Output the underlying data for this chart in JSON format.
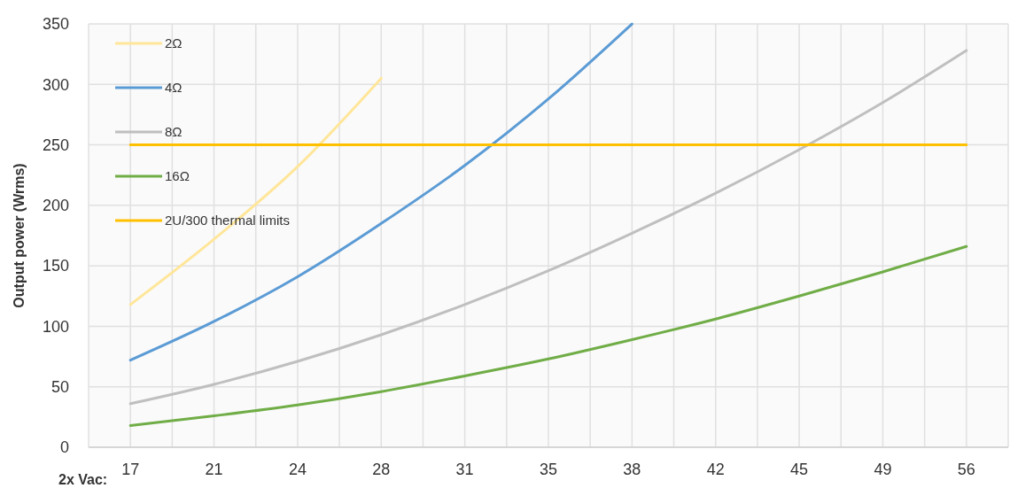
{
  "chart_data": {
    "type": "line",
    "xlabel": "2x Vac:",
    "ylabel": "Output power (Wrms)",
    "categories": [
      "17",
      "21",
      "24",
      "28",
      "31",
      "35",
      "38",
      "42",
      "45",
      "49",
      "56"
    ],
    "series": [
      {
        "name": "2Ω",
        "color": "#ffe699",
        "values": [
          118,
          172,
          232,
          305,
          null,
          null,
          null,
          null,
          null,
          null,
          null
        ]
      },
      {
        "name": "4Ω",
        "color": "#5b9bd5",
        "values": [
          72,
          104,
          141,
          185,
          233,
          288,
          350,
          null,
          null,
          null,
          null
        ]
      },
      {
        "name": "8Ω",
        "color": "#bfbfbf",
        "values": [
          36,
          52,
          71,
          93,
          118,
          146,
          177,
          210,
          246,
          285,
          328
        ]
      },
      {
        "name": "16Ω",
        "color": "#70ad47",
        "values": [
          18,
          26,
          35,
          46,
          59,
          73,
          89,
          106,
          125,
          145,
          166
        ]
      },
      {
        "name": "2U/300 thermal limits",
        "color": "#ffc000",
        "values": [
          250,
          250,
          250,
          250,
          250,
          250,
          250,
          250,
          250,
          250,
          250
        ]
      }
    ],
    "ylim": [
      0,
      350
    ],
    "yticks": [
      0,
      50,
      100,
      150,
      200,
      250,
      300,
      350
    ],
    "grid": true,
    "legend": "top left",
    "line_style": "solid",
    "marker": "none"
  }
}
